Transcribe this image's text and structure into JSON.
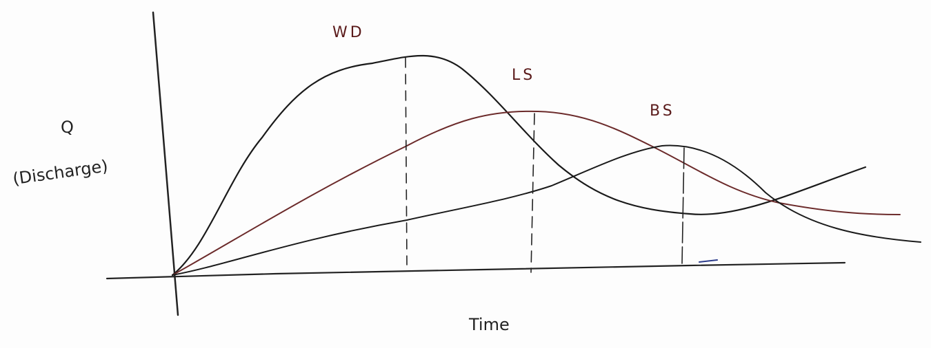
{
  "curve_labels": {
    "wd": "WD",
    "ls": "LS",
    "bs": "BS"
  },
  "y_axis": {
    "symbol": "Q",
    "label": "(Discharge)"
  },
  "x_axis": {
    "label": "Time"
  }
}
